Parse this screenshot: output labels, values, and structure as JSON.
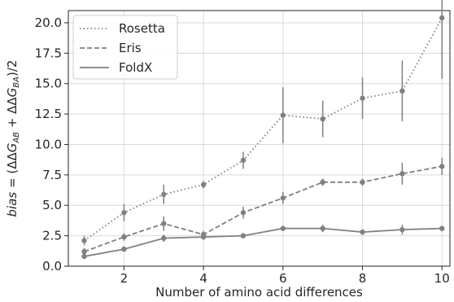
{
  "chart_data": {
    "type": "line",
    "xlabel": "Number of amino acid differences",
    "ylabel": "bias = (ΔΔG_AB + ΔΔG_BA)/2",
    "ylabel_parts": {
      "italic_bias": "bias",
      "equals_open": " = (ΔΔ",
      "G1": "G",
      "sub1": "AB",
      "plus": " + ΔΔ",
      "G2": "G",
      "sub2": "BA",
      "close": ")/2"
    },
    "xlim": [
      0.6,
      10.2
    ],
    "ylim": [
      0,
      21
    ],
    "x_ticks": [
      2,
      4,
      6,
      8,
      10
    ],
    "y_ticks": [
      0.0,
      2.5,
      5.0,
      7.5,
      10.0,
      12.5,
      15.0,
      17.5,
      20.0
    ],
    "y_tick_labels": [
      "0.0",
      "2.5",
      "5.0",
      "7.5",
      "10.0",
      "12.5",
      "15.0",
      "17.5",
      "20.0"
    ],
    "grid": true,
    "legend_position": "top-left",
    "x": [
      1,
      2,
      3,
      4,
      5,
      6,
      7,
      8,
      9,
      10
    ],
    "series": [
      {
        "name": "Rosetta",
        "style": "dotted",
        "color": "#808080",
        "values": [
          2.1,
          4.4,
          5.9,
          6.7,
          8.7,
          12.4,
          12.1,
          13.8,
          14.4,
          20.4
        ],
        "errors": [
          0.4,
          0.7,
          0.8,
          0.3,
          0.7,
          2.3,
          1.5,
          1.7,
          2.5,
          5.0
        ]
      },
      {
        "name": "Eris",
        "style": "dashed",
        "color": "#808080",
        "values": [
          1.2,
          2.4,
          3.5,
          2.6,
          4.4,
          5.6,
          6.9,
          6.9,
          7.6,
          8.2
        ],
        "errors": [
          0.3,
          0.3,
          0.6,
          0.3,
          0.5,
          0.5,
          0.3,
          0.3,
          0.9,
          0.7
        ]
      },
      {
        "name": "FoldX",
        "style": "solid",
        "color": "#808080",
        "values": [
          0.8,
          1.4,
          2.3,
          2.4,
          2.5,
          3.1,
          3.1,
          2.8,
          3.0,
          3.1
        ],
        "errors": [
          0.2,
          0.2,
          0.3,
          0.2,
          0.2,
          0.2,
          0.3,
          0.2,
          0.4,
          0.2
        ]
      }
    ]
  }
}
